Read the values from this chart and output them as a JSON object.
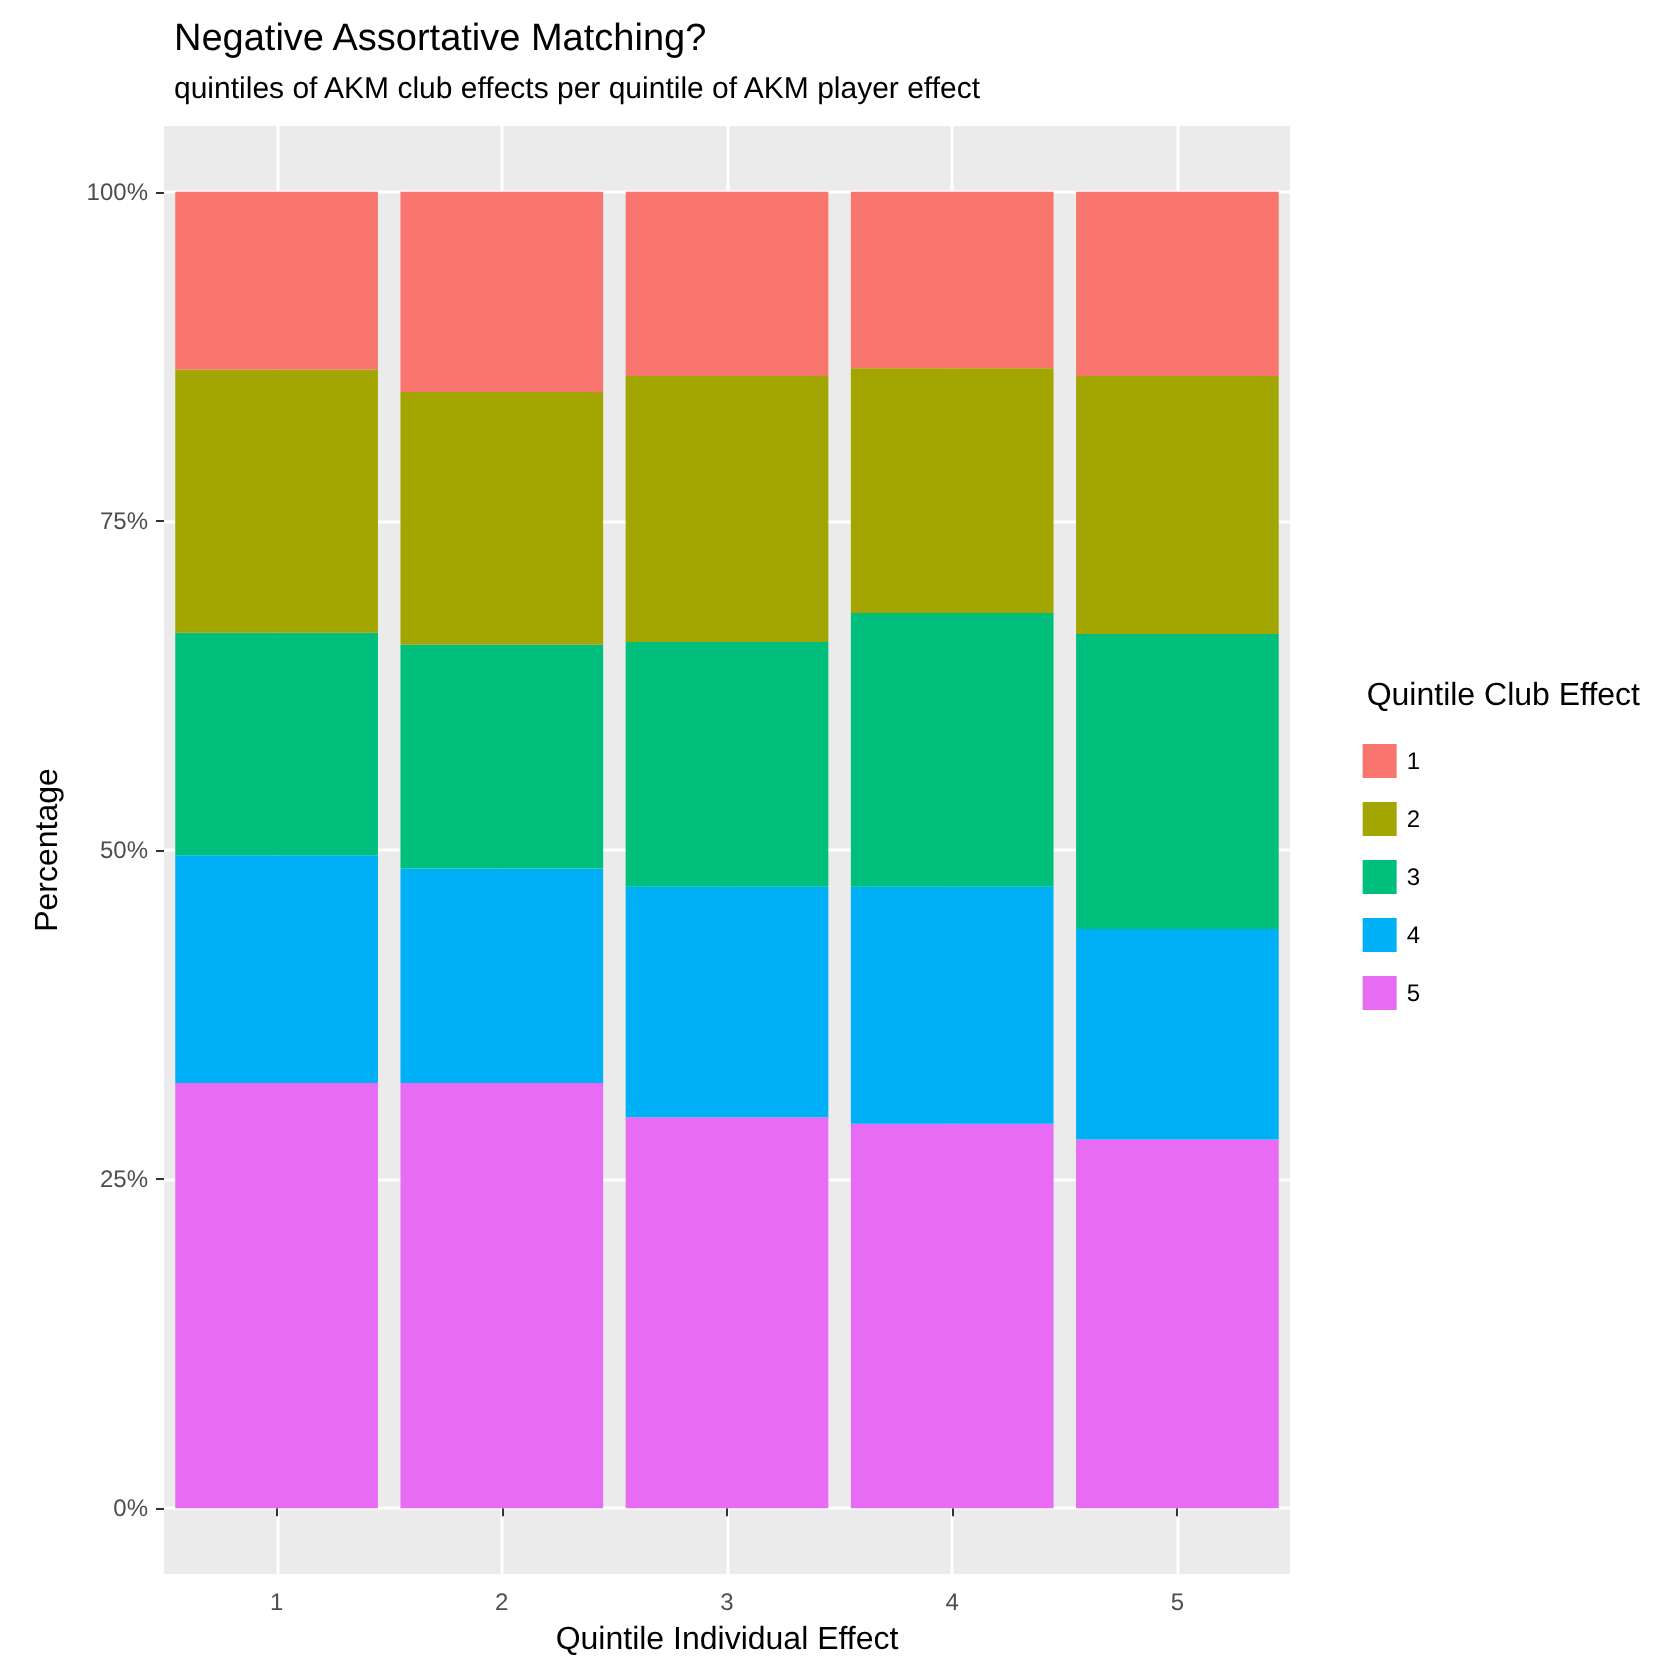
{
  "chart_data": {
    "type": "bar",
    "title": "Negative Assortative Matching?",
    "subtitle": "quintiles of AKM club effects per quintile of AKM player effect",
    "xlabel": "Quintile Individual Effect",
    "ylabel": "Percentage",
    "legend_title": "Quintile Club Effect",
    "categories": [
      "1",
      "2",
      "3",
      "4",
      "5"
    ],
    "stacked": true,
    "series": [
      {
        "name": "5",
        "color": "#e76bf3",
        "values": [
          32.3,
          32.3,
          29.7,
          29.2,
          28.0
        ]
      },
      {
        "name": "4",
        "color": "#00b0f6",
        "values": [
          17.3,
          16.3,
          17.5,
          18.0,
          16.0
        ]
      },
      {
        "name": "3",
        "color": "#00bf7d",
        "values": [
          16.9,
          17.0,
          18.6,
          20.8,
          22.4
        ]
      },
      {
        "name": "2",
        "color": "#a3a500",
        "values": [
          20.0,
          19.2,
          20.2,
          18.6,
          19.6
        ]
      },
      {
        "name": "1",
        "color": "#f8766d",
        "values": [
          13.5,
          15.2,
          14.0,
          13.4,
          14.0
        ]
      }
    ],
    "ylim": [
      -5,
      105
    ],
    "yticks": [
      {
        "value": 0,
        "label": "0%"
      },
      {
        "value": 25,
        "label": "25%"
      },
      {
        "value": 50,
        "label": "50%"
      },
      {
        "value": 75,
        "label": "75%"
      },
      {
        "value": 100,
        "label": "100%"
      }
    ],
    "grid": true,
    "legend": "right"
  }
}
